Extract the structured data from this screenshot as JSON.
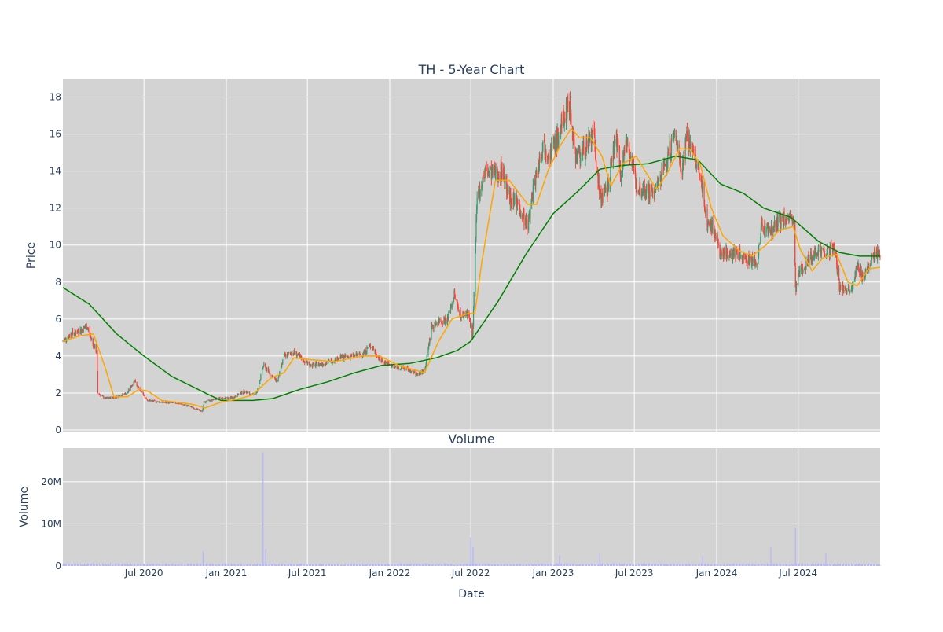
{
  "chart_data": [
    {
      "type": "candlestick",
      "title": "TH - 5-Year Chart",
      "xlabel": "",
      "ylabel": "Price",
      "ylim": [
        0,
        19
      ],
      "xlim": [
        "2020-01-02",
        "2024-12-31"
      ],
      "y_ticks": [
        0,
        2,
        4,
        6,
        8,
        10,
        12,
        14,
        16,
        18
      ],
      "grid": true,
      "legend": "none",
      "colors": {
        "increasing": "#3d9970",
        "decreasing": "#ff4136",
        "ma_fast": "#ffa500",
        "ma_slow": "#008000",
        "plot_bg": "#d3d3d3"
      },
      "price_path": [
        [
          "2020-01-02",
          4.8
        ],
        [
          "2020-01-20",
          5.2
        ],
        [
          "2020-02-10",
          5.4
        ],
        [
          "2020-02-25",
          5.6
        ],
        [
          "2020-03-10",
          4.6
        ],
        [
          "2020-03-18",
          4.2
        ],
        [
          "2020-03-20",
          2.0
        ],
        [
          "2020-04-05",
          1.7
        ],
        [
          "2020-05-01",
          1.8
        ],
        [
          "2020-05-25",
          2.0
        ],
        [
          "2020-06-10",
          2.7
        ],
        [
          "2020-06-20",
          2.2
        ],
        [
          "2020-07-10",
          1.6
        ],
        [
          "2020-08-10",
          1.5
        ],
        [
          "2020-09-15",
          1.45
        ],
        [
          "2020-10-15",
          1.25
        ],
        [
          "2020-11-08",
          1.0
        ],
        [
          "2020-11-12",
          1.5
        ],
        [
          "2020-12-10",
          1.7
        ],
        [
          "2021-01-15",
          1.75
        ],
        [
          "2021-02-10",
          2.1
        ],
        [
          "2021-02-25",
          1.9
        ],
        [
          "2021-03-10",
          2.0
        ],
        [
          "2021-03-25",
          3.5
        ],
        [
          "2021-04-10",
          3.0
        ],
        [
          "2021-04-25",
          2.6
        ],
        [
          "2021-05-10",
          4.0
        ],
        [
          "2021-06-01",
          4.2
        ],
        [
          "2021-06-20",
          3.8
        ],
        [
          "2021-07-10",
          3.5
        ],
        [
          "2021-08-10",
          3.6
        ],
        [
          "2021-09-10",
          3.9
        ],
        [
          "2021-10-10",
          4.0
        ],
        [
          "2021-11-01",
          4.1
        ],
        [
          "2021-11-20",
          4.6
        ],
        [
          "2021-12-10",
          3.8
        ],
        [
          "2022-01-10",
          3.4
        ],
        [
          "2022-02-10",
          3.3
        ],
        [
          "2022-03-01",
          3.0
        ],
        [
          "2022-03-20",
          3.2
        ],
        [
          "2022-04-05",
          5.6
        ],
        [
          "2022-04-20",
          5.9
        ],
        [
          "2022-05-10",
          6.0
        ],
        [
          "2022-05-25",
          7.3
        ],
        [
          "2022-06-10",
          6.1
        ],
        [
          "2022-06-25",
          6.4
        ],
        [
          "2022-07-05",
          5.0
        ],
        [
          "2022-07-15",
          12.5
        ],
        [
          "2022-08-01",
          14.0
        ],
        [
          "2022-08-20",
          13.8
        ],
        [
          "2022-09-10",
          14.0
        ],
        [
          "2022-09-25",
          12.5
        ],
        [
          "2022-10-15",
          12.2
        ],
        [
          "2022-11-05",
          11.0
        ],
        [
          "2022-11-20",
          13.5
        ],
        [
          "2022-12-10",
          15.5
        ],
        [
          "2022-12-25",
          15.0
        ],
        [
          "2023-01-15",
          16.0
        ],
        [
          "2023-02-05",
          17.8
        ],
        [
          "2023-02-20",
          14.8
        ],
        [
          "2023-03-15",
          15.2
        ],
        [
          "2023-04-01",
          16.0
        ],
        [
          "2023-04-15",
          12.6
        ],
        [
          "2023-05-01",
          12.8
        ],
        [
          "2023-05-20",
          16.0
        ],
        [
          "2023-06-01",
          14.0
        ],
        [
          "2023-06-15",
          15.8
        ],
        [
          "2023-07-05",
          13.2
        ],
        [
          "2023-07-25",
          13.0
        ],
        [
          "2023-08-15",
          12.8
        ],
        [
          "2023-09-10",
          14.5
        ],
        [
          "2023-10-01",
          16.0
        ],
        [
          "2023-10-15",
          14.0
        ],
        [
          "2023-10-25",
          16.0
        ],
        [
          "2023-11-15",
          14.5
        ],
        [
          "2023-12-01",
          13.0
        ],
        [
          "2023-12-10",
          11.2
        ],
        [
          "2023-12-25",
          11.0
        ],
        [
          "2024-01-10",
          9.5
        ],
        [
          "2024-02-01",
          9.6
        ],
        [
          "2024-03-01",
          9.4
        ],
        [
          "2024-04-01",
          9.0
        ],
        [
          "2024-04-10",
          11.0
        ],
        [
          "2024-05-01",
          10.8
        ],
        [
          "2024-05-20",
          11.3
        ],
        [
          "2024-06-05",
          11.5
        ],
        [
          "2024-06-22",
          11.2
        ],
        [
          "2024-06-25",
          7.5
        ],
        [
          "2024-07-05",
          8.6
        ],
        [
          "2024-07-25",
          9.2
        ],
        [
          "2024-08-15",
          9.8
        ],
        [
          "2024-09-05",
          9.6
        ],
        [
          "2024-09-20",
          9.9
        ],
        [
          "2024-10-01",
          7.7
        ],
        [
          "2024-10-25",
          7.6
        ],
        [
          "2024-11-10",
          8.8
        ],
        [
          "2024-11-25",
          8.2
        ],
        [
          "2024-12-15",
          9.5
        ],
        [
          "2024-12-31",
          9.6
        ]
      ],
      "ma_fast": [
        [
          "2020-01-02",
          4.8
        ],
        [
          "2020-02-10",
          5.1
        ],
        [
          "2020-03-10",
          5.2
        ],
        [
          "2020-04-05",
          3.4
        ],
        [
          "2020-04-25",
          1.8
        ],
        [
          "2020-05-25",
          1.8
        ],
        [
          "2020-06-20",
          2.2
        ],
        [
          "2020-07-10",
          2.1
        ],
        [
          "2020-08-10",
          1.6
        ],
        [
          "2020-10-15",
          1.4
        ],
        [
          "2020-11-15",
          1.2
        ],
        [
          "2020-12-20",
          1.5
        ],
        [
          "2021-02-01",
          1.7
        ],
        [
          "2021-03-01",
          1.9
        ],
        [
          "2021-04-10",
          2.8
        ],
        [
          "2021-05-10",
          3.1
        ],
        [
          "2021-06-01",
          3.9
        ],
        [
          "2021-07-10",
          3.8
        ],
        [
          "2021-09-01",
          3.7
        ],
        [
          "2021-11-01",
          4.0
        ],
        [
          "2021-12-10",
          4.0
        ],
        [
          "2022-01-20",
          3.5
        ],
        [
          "2022-03-20",
          3.1
        ],
        [
          "2022-04-20",
          4.8
        ],
        [
          "2022-05-20",
          6.0
        ],
        [
          "2022-06-25",
          6.3
        ],
        [
          "2022-07-10",
          6.3
        ],
        [
          "2022-07-25",
          9.0
        ],
        [
          "2022-08-25",
          13.5
        ],
        [
          "2022-09-25",
          13.5
        ],
        [
          "2022-11-05",
          12.2
        ],
        [
          "2022-11-25",
          12.2
        ],
        [
          "2022-12-20",
          14.0
        ],
        [
          "2023-01-15",
          15.3
        ],
        [
          "2023-02-10",
          16.3
        ],
        [
          "2023-03-01",
          15.8
        ],
        [
          "2023-03-25",
          15.8
        ],
        [
          "2023-04-20",
          14.8
        ],
        [
          "2023-05-10",
          13.2
        ],
        [
          "2023-06-05",
          14.4
        ],
        [
          "2023-07-05",
          14.8
        ],
        [
          "2023-07-20",
          14.2
        ],
        [
          "2023-08-20",
          13.0
        ],
        [
          "2023-09-15",
          14.0
        ],
        [
          "2023-10-10",
          15.2
        ],
        [
          "2023-11-01",
          15.2
        ],
        [
          "2023-11-25",
          14.4
        ],
        [
          "2023-12-20",
          12.0
        ],
        [
          "2024-01-15",
          10.5
        ],
        [
          "2024-02-20",
          9.7
        ],
        [
          "2024-03-20",
          9.4
        ],
        [
          "2024-04-20",
          10.0
        ],
        [
          "2024-05-20",
          10.8
        ],
        [
          "2024-06-20",
          11.0
        ],
        [
          "2024-07-05",
          9.8
        ],
        [
          "2024-08-01",
          8.6
        ],
        [
          "2024-08-25",
          9.3
        ],
        [
          "2024-09-25",
          9.5
        ],
        [
          "2024-10-20",
          8.0
        ],
        [
          "2024-11-10",
          7.8
        ],
        [
          "2024-12-05",
          8.7
        ],
        [
          "2024-12-31",
          8.8
        ]
      ],
      "ma_slow": [
        [
          "2020-01-02",
          7.7
        ],
        [
          "2020-03-01",
          6.8
        ],
        [
          "2020-05-01",
          5.2
        ],
        [
          "2020-07-01",
          4.0
        ],
        [
          "2020-09-01",
          2.9
        ],
        [
          "2020-11-15",
          2.0
        ],
        [
          "2020-12-20",
          1.6
        ],
        [
          "2021-03-01",
          1.6
        ],
        [
          "2021-04-15",
          1.7
        ],
        [
          "2021-06-15",
          2.2
        ],
        [
          "2021-08-15",
          2.6
        ],
        [
          "2021-10-15",
          3.1
        ],
        [
          "2021-12-15",
          3.5
        ],
        [
          "2022-02-15",
          3.6
        ],
        [
          "2022-04-15",
          3.9
        ],
        [
          "2022-06-01",
          4.3
        ],
        [
          "2022-07-01",
          4.8
        ],
        [
          "2022-09-01",
          7.0
        ],
        [
          "2022-11-01",
          9.5
        ],
        [
          "2023-01-01",
          11.7
        ],
        [
          "2023-03-01",
          13.0
        ],
        [
          "2023-04-15",
          14.1
        ],
        [
          "2023-06-01",
          14.3
        ],
        [
          "2023-08-01",
          14.4
        ],
        [
          "2023-10-01",
          14.8
        ],
        [
          "2023-11-20",
          14.6
        ],
        [
          "2024-01-10",
          13.3
        ],
        [
          "2024-03-01",
          12.8
        ],
        [
          "2024-04-15",
          12.0
        ],
        [
          "2024-06-15",
          11.5
        ],
        [
          "2024-08-15",
          10.2
        ],
        [
          "2024-10-01",
          9.6
        ],
        [
          "2024-11-15",
          9.4
        ],
        [
          "2024-12-31",
          9.4
        ]
      ]
    },
    {
      "type": "bar",
      "title": "Volume",
      "xlabel": "Date",
      "ylabel": "Volume",
      "ylim": [
        0,
        28000000
      ],
      "y_tick_values": [
        0,
        10000000,
        20000000
      ],
      "y_tick_labels": [
        "0",
        "10M",
        "20M"
      ],
      "x_ticks": [
        "2020-07-01",
        "2021-01-01",
        "2021-07-01",
        "2022-01-01",
        "2022-07-01",
        "2023-01-01",
        "2023-07-01",
        "2024-01-01",
        "2024-07-01"
      ],
      "x_tick_labels": [
        "Jul 2020",
        "Jan 2021",
        "Jul 2021",
        "Jan 2022",
        "Jul 2022",
        "Jan 2023",
        "Jul 2023",
        "Jan 2024",
        "Jul 2024"
      ],
      "grid": true,
      "colors": {
        "bar": "#b4b4ff",
        "plot_bg": "#d3d3d3"
      },
      "spikes": [
        [
          "2020-11-10",
          3500000
        ],
        [
          "2021-03-24",
          27000000
        ],
        [
          "2021-03-30",
          4000000
        ],
        [
          "2022-07-01",
          6800000
        ],
        [
          "2022-07-06",
          4500000
        ],
        [
          "2023-01-15",
          2500000
        ],
        [
          "2023-04-15",
          3000000
        ],
        [
          "2023-12-01",
          2500000
        ],
        [
          "2024-05-01",
          4500000
        ],
        [
          "2024-06-25",
          9000000
        ],
        [
          "2024-09-01",
          3000000
        ]
      ]
    }
  ]
}
